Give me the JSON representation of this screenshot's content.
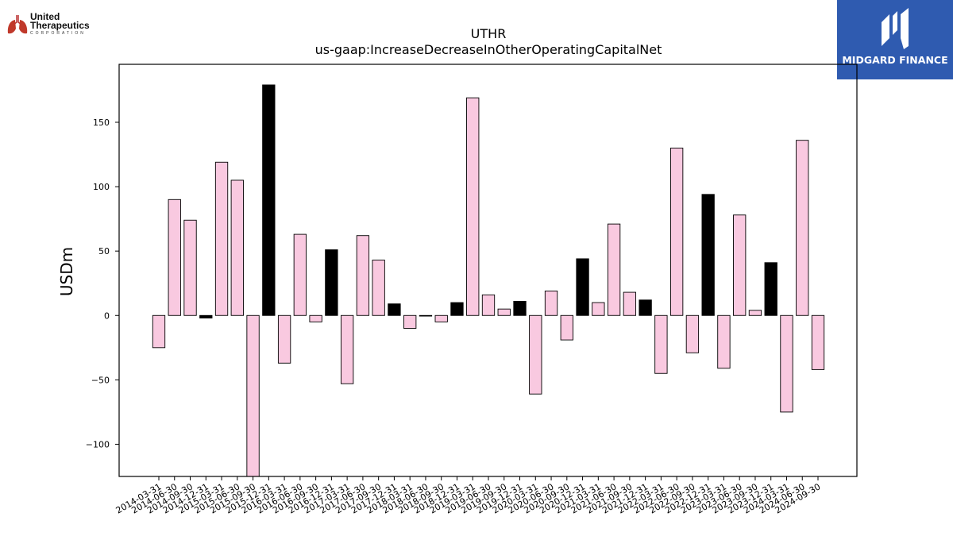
{
  "logos": {
    "left": {
      "line1": "United",
      "line2": "Therapeutics",
      "line3": "CORPORATION"
    },
    "right": {
      "text": "MIDGARD FINANCE",
      "color": "#2f5bb0"
    }
  },
  "chart_data": {
    "type": "bar",
    "title": "UTHR",
    "subtitle": "us-gaap:IncreaseDecreaseInOtherOperatingCapitalNet",
    "xlabel": "",
    "ylabel": "USDm",
    "ylim": [
      -125,
      195
    ],
    "yticks": [
      -100,
      -50,
      0,
      50,
      100,
      150
    ],
    "ytick_labels": [
      "−100",
      "−50",
      "0",
      "50",
      "100",
      "150"
    ],
    "grid": false,
    "colors": {
      "quarter": "#f9c9e0",
      "year_end": "#000000",
      "edge": "#000000"
    },
    "categories": [
      "2014-03-31",
      "2014-06-30",
      "2014-09-30",
      "2014-12-31",
      "2015-03-31",
      "2015-06-30",
      "2015-09-30",
      "2015-12-31",
      "2016-03-31",
      "2016-06-30",
      "2016-09-30",
      "2016-12-31",
      "2017-03-31",
      "2017-06-30",
      "2017-09-30",
      "2017-12-31",
      "2018-03-31",
      "2018-06-30",
      "2018-09-30",
      "2018-12-31",
      "2019-03-31",
      "2019-06-30",
      "2019-09-30",
      "2019-12-31",
      "2020-03-31",
      "2020-06-30",
      "2020-09-30",
      "2020-12-31",
      "2021-03-31",
      "2021-06-30",
      "2021-09-30",
      "2021-12-31",
      "2022-03-31",
      "2022-06-30",
      "2022-09-30",
      "2022-12-31",
      "2023-03-31",
      "2023-06-30",
      "2023-09-30",
      "2023-12-31",
      "2024-03-31",
      "2024-06-30",
      "2024-09-30"
    ],
    "values": [
      -25,
      90,
      74,
      -2,
      119,
      105,
      -125,
      179,
      -37,
      63,
      -5,
      51,
      -53,
      62,
      43,
      9,
      -10,
      0,
      -5,
      10,
      169,
      16,
      5,
      11,
      -61,
      19,
      -19,
      44,
      10,
      71,
      18,
      12,
      -45,
      130,
      -29,
      94,
      -41,
      78,
      4,
      41,
      -75,
      136,
      -42
    ]
  }
}
